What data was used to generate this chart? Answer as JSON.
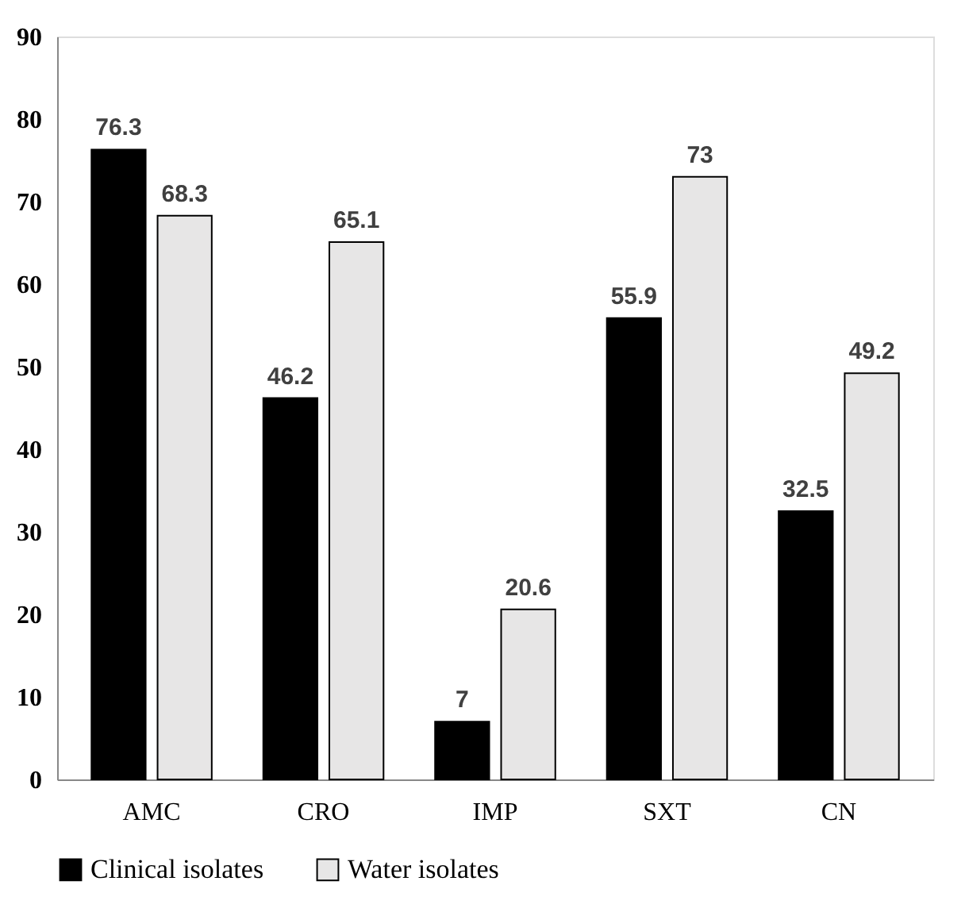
{
  "chart_data": {
    "type": "bar",
    "categories": [
      "AMC",
      "CRO",
      "IMP",
      "SXT",
      "CN"
    ],
    "series": [
      {
        "name": "Clinical isolates",
        "color": "#000000",
        "values": [
          76.3,
          46.2,
          7,
          55.9,
          32.5
        ]
      },
      {
        "name": "Water isolates",
        "color": "#e7e6e6",
        "values": [
          68.3,
          65.1,
          20.6,
          73,
          49.2
        ]
      }
    ],
    "ylim": [
      0,
      90
    ],
    "yticks": [
      0,
      10,
      20,
      30,
      40,
      50,
      60,
      70,
      80,
      90
    ],
    "data_labels": true,
    "legend": "bottom",
    "grid": false
  }
}
